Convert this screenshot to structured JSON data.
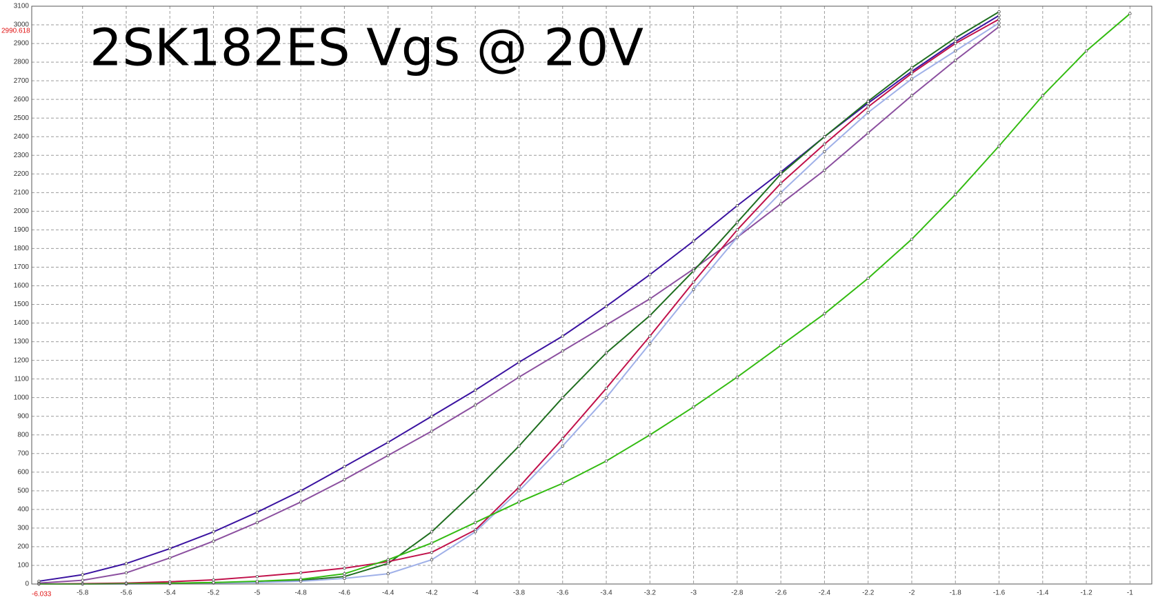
{
  "chart_data": {
    "type": "line",
    "title": "2SK182ES Vgs @ 20V",
    "cursor_x_label": "-6.033",
    "cursor_y_label": "2990.618",
    "x": [
      -6.0,
      -5.8,
      -5.6,
      -5.4,
      -5.2,
      -5.0,
      -4.8,
      -4.6,
      -4.4,
      -4.2,
      -4.0,
      -3.8,
      -3.6,
      -3.4,
      -3.2,
      -3.0,
      -2.8,
      -2.6,
      -2.4,
      -2.2,
      -2.0,
      -1.8,
      -1.6,
      -1.4,
      -1.2,
      -1.0
    ],
    "series": [
      {
        "color": "#3a12a0",
        "values": [
          15,
          50,
          110,
          190,
          280,
          385,
          500,
          630,
          760,
          900,
          1040,
          1190,
          1330,
          1490,
          1660,
          1840,
          2030,
          2210,
          2400,
          2580,
          2750,
          2910,
          3050,
          null,
          null,
          null
        ]
      },
      {
        "color": "#8b4f9f",
        "values": [
          5,
          20,
          60,
          140,
          230,
          330,
          440,
          560,
          690,
          820,
          960,
          1110,
          1250,
          1390,
          1530,
          1690,
          1860,
          2040,
          2220,
          2420,
          2620,
          2810,
          2990,
          null,
          null,
          null
        ]
      },
      {
        "color": "#1f6e1f",
        "values": [
          0,
          0,
          2,
          4,
          8,
          12,
          20,
          40,
          110,
          280,
          500,
          740,
          1000,
          1240,
          1440,
          1680,
          1940,
          2200,
          2400,
          2590,
          2770,
          2930,
          3070,
          null,
          null,
          null
        ]
      },
      {
        "color": "#c0104a",
        "values": [
          0,
          2,
          5,
          12,
          22,
          40,
          60,
          85,
          120,
          170,
          290,
          520,
          780,
          1050,
          1330,
          1620,
          1900,
          2150,
          2360,
          2560,
          2740,
          2900,
          3030,
          null,
          null,
          null
        ]
      },
      {
        "color": "#9fb0e8",
        "values": [
          0,
          0,
          0,
          2,
          5,
          8,
          15,
          30,
          55,
          130,
          280,
          500,
          740,
          1000,
          1290,
          1580,
          1860,
          2100,
          2320,
          2530,
          2710,
          2860,
          3010,
          null,
          null,
          null
        ]
      },
      {
        "color": "#33bb11",
        "values": [
          0,
          0,
          2,
          4,
          8,
          15,
          25,
          55,
          130,
          220,
          330,
          440,
          540,
          660,
          800,
          950,
          1110,
          1280,
          1450,
          1640,
          1850,
          2090,
          2350,
          2620,
          2860,
          3060
        ]
      }
    ],
    "xlim": [
      -6.033,
      -0.9
    ],
    "ylim": [
      0,
      3100
    ],
    "xticks": [
      -5.8,
      -5.6,
      -5.4,
      -5.2,
      -5,
      -4.8,
      -4.6,
      -4.4,
      -4.2,
      -4,
      -3.8,
      -3.6,
      -3.4,
      -3.2,
      -3,
      -2.8,
      -2.6,
      -2.4,
      -2.2,
      -2,
      -1.8,
      -1.6,
      -1.4,
      -1.2,
      -1
    ],
    "yticks": [
      0,
      100,
      200,
      300,
      400,
      500,
      600,
      700,
      800,
      900,
      1000,
      1100,
      1200,
      1300,
      1400,
      1500,
      1600,
      1700,
      1800,
      1900,
      2000,
      2100,
      2200,
      2300,
      2400,
      2500,
      2600,
      2700,
      2800,
      2900,
      3000,
      3100
    ],
    "grid": true
  }
}
